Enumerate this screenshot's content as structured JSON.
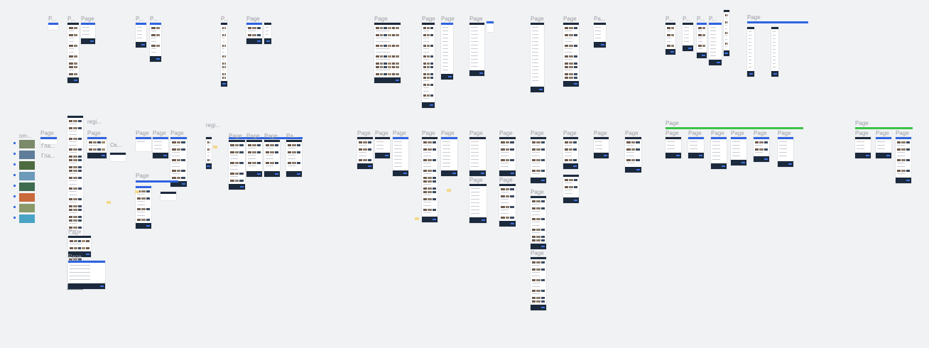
{
  "canvas": {
    "colors": {
      "background": "#f1f2f4",
      "accent": "#2f64e0",
      "dark": "#1c2a3d",
      "section_green": "#3cc24a",
      "note": "#f2d98a"
    },
    "labels": [
      "P...",
      "P...",
      "Page",
      "P...",
      "P...",
      "P...",
      "Page",
      "Page",
      "Page",
      "Page",
      "Page",
      "Page",
      "Pa...",
      "P...",
      "P...",
      "P...",
      "P...",
      "Page",
      "om...",
      "Page",
      "Гла...",
      "Гла...",
      "regi...",
      "Page",
      "Ок...",
      "Page",
      "Page",
      "Page",
      "Page",
      "regi...",
      "Page",
      "Page",
      "Page",
      "Pa...",
      "Page",
      "Page",
      "Page",
      "Page",
      "Page",
      "Page",
      "Page",
      "Page",
      "Page",
      "Page",
      "Page",
      "Page",
      "Page",
      "Page",
      "Page",
      "Page",
      "Page",
      "Page",
      "Page",
      "Page",
      "Page",
      "Page",
      "Page",
      "Page",
      "Page",
      "Page",
      "Page"
    ]
  }
}
